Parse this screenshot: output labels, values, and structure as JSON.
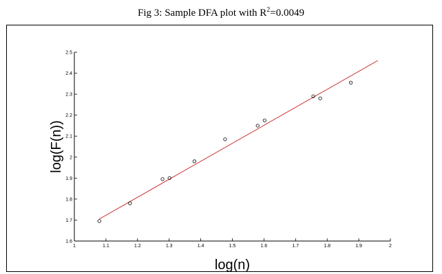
{
  "caption": {
    "prefix": "Fig 3: Sample DFA plot with R",
    "superscript": "2",
    "suffix": "=0.0049"
  },
  "chart_data": {
    "type": "scatter",
    "title": "",
    "xlabel": "log(n)",
    "ylabel": "log(F(n))",
    "xlim": [
      1,
      2
    ],
    "ylim": [
      1.6,
      2.5
    ],
    "xticks": [
      "1",
      "1.1",
      "1.2",
      "1.3",
      "1.4",
      "1.5",
      "1.6",
      "1.7",
      "1.8",
      "1.9",
      "2"
    ],
    "yticks": [
      "1.6",
      "1.7",
      "1.8",
      "1.9",
      "2",
      "2.1",
      "2.2",
      "2.3",
      "2.4",
      "2.5"
    ],
    "grid": false,
    "series": [
      {
        "marker": "circle",
        "color": "#000000",
        "x": [
          1.079,
          1.176,
          1.279,
          1.301,
          1.38,
          1.477,
          1.58,
          1.602,
          1.756,
          1.778,
          1.875
        ],
        "y": [
          1.695,
          1.78,
          1.895,
          1.9,
          1.98,
          2.085,
          2.15,
          2.175,
          2.29,
          2.28,
          2.355
        ]
      }
    ],
    "fit_line": {
      "color": "#cc3333",
      "x": [
        1.079,
        1.96
      ],
      "y": [
        1.705,
        2.46
      ]
    }
  }
}
